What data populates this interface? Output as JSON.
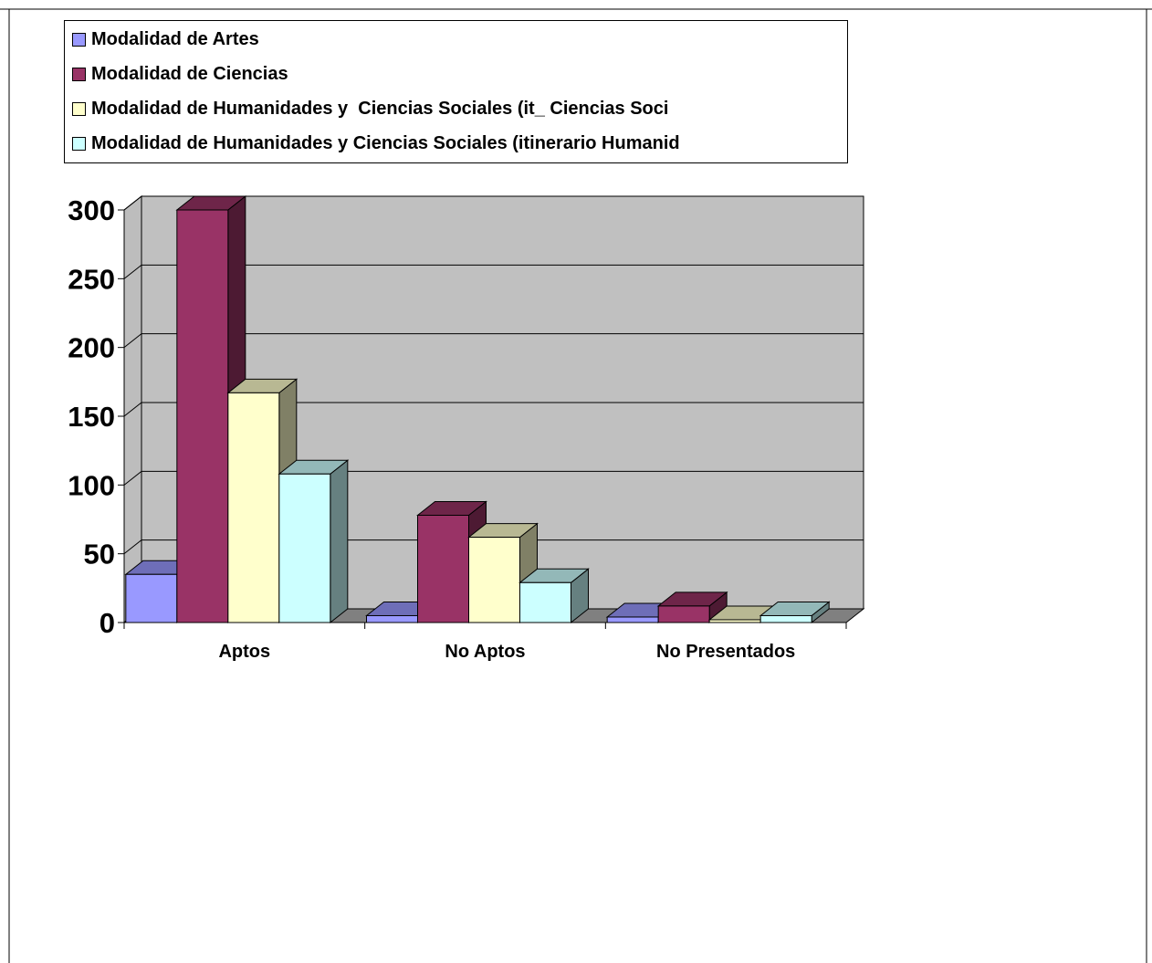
{
  "chart_data": {
    "type": "bar",
    "style": "3d-clustered-column",
    "categories": [
      "Aptos",
      "No Aptos",
      "No Presentados"
    ],
    "series": [
      {
        "name": "Modalidad de Artes",
        "values": [
          35,
          5,
          4
        ],
        "color": "#9999ff"
      },
      {
        "name": "Modalidad de Ciencias",
        "values": [
          300,
          78,
          12
        ],
        "color": "#993366"
      },
      {
        "name": "Modalidad de Humanidades y  Ciencias Sociales (it_ Ciencias Soci",
        "values": [
          167,
          62,
          2
        ],
        "color": "#ffffcc"
      },
      {
        "name": "Modalidad de Humanidades y Ciencias Sociales (itinerario Humanid",
        "values": [
          108,
          29,
          5
        ],
        "color": "#ccffff"
      }
    ],
    "ylim": [
      0,
      300
    ],
    "yticks": [
      "0",
      "50",
      "100",
      "150",
      "200",
      "250",
      "300"
    ],
    "grid": true,
    "legend_position": "top",
    "wall_color": "#c0c0c0",
    "floor_color": "#808080"
  }
}
